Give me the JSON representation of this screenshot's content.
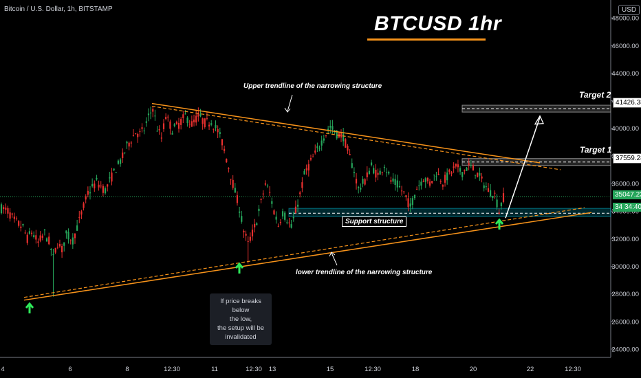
{
  "symbol": "Bitcoin / U.S. Dollar, 1h, BITSTAMP",
  "headline": "BTCUSD 1hr",
  "currency_button": "USD",
  "annotations": {
    "upper": "Upper trendline of the narrowing structure",
    "lower": "lower trendline of the narrowing structure",
    "support": "Support structure",
    "target1": "Target 1",
    "target2": "Target 2",
    "invalidation": [
      "If price breaks below",
      "the low,",
      "the setup will be",
      "invalidated"
    ]
  },
  "price_labels": {
    "current": "35047.23",
    "timer": "34:40",
    "target1": "37559.28",
    "target2": "41426.38",
    "support_partial": "34"
  },
  "colors": {
    "up": "#26a65b",
    "down": "#e8302e",
    "trendline": "#f7931a",
    "support_zone": "#00bcd4",
    "current_price": "#26a65b"
  },
  "chart_data": {
    "type": "candlestick",
    "title": "BTCUSD 1hr",
    "y_ticks": [
      24000,
      26000,
      28000,
      30000,
      32000,
      34000,
      36000,
      38000,
      40000,
      42000,
      44000,
      46000,
      48000
    ],
    "y_tick_labels": [
      "24000.00",
      "26000.00",
      "28000.00",
      "30000.00",
      "32000.00",
      "34000.00",
      "36000.00",
      "38000.00",
      "40000.00",
      "42000.00",
      "44000.00",
      "46000.00",
      "48000.00"
    ],
    "ylim": [
      23400,
      49300
    ],
    "x_ticks": [
      "4",
      "6",
      "8",
      "12:30",
      "11",
      "12:30",
      "13",
      "15",
      "12:30",
      "18",
      "20",
      "22",
      "12:30"
    ],
    "price_path": [
      [
        0,
        34200
      ],
      [
        3,
        34000
      ],
      [
        6,
        33300
      ],
      [
        10,
        32800
      ],
      [
        12,
        32000
      ],
      [
        14,
        32500
      ],
      [
        17,
        31700
      ],
      [
        20,
        32400
      ],
      [
        22,
        31800
      ],
      [
        24,
        30600
      ],
      [
        26,
        31700
      ],
      [
        28,
        31200
      ],
      [
        30,
        32300
      ],
      [
        33,
        31900
      ],
      [
        36,
        33300
      ],
      [
        40,
        35300
      ],
      [
        44,
        36100
      ],
      [
        48,
        35500
      ],
      [
        52,
        36800
      ],
      [
        56,
        37900
      ],
      [
        58,
        38700
      ],
      [
        62,
        39700
      ],
      [
        64,
        39600
      ],
      [
        66,
        39900
      ],
      [
        68,
        40800
      ],
      [
        70,
        41500
      ],
      [
        72,
        40000
      ],
      [
        74,
        39300
      ],
      [
        76,
        40900
      ],
      [
        79,
        39900
      ],
      [
        82,
        40300
      ],
      [
        85,
        40900
      ],
      [
        88,
        40300
      ],
      [
        91,
        40900
      ],
      [
        94,
        40400
      ],
      [
        97,
        40500
      ],
      [
        100,
        39800
      ],
      [
        102,
        39000
      ],
      [
        104,
        37800
      ],
      [
        107,
        36000
      ],
      [
        110,
        34200
      ],
      [
        112,
        32600
      ],
      [
        114,
        31600
      ],
      [
        116,
        32400
      ],
      [
        118,
        33300
      ],
      [
        120,
        34600
      ],
      [
        122,
        36000
      ],
      [
        124,
        35300
      ],
      [
        126,
        34000
      ],
      [
        128,
        33000
      ],
      [
        130,
        33900
      ],
      [
        132,
        33400
      ],
      [
        134,
        32800
      ],
      [
        136,
        34000
      ],
      [
        138,
        35200
      ],
      [
        140,
        36600
      ],
      [
        143,
        37600
      ],
      [
        146,
        38400
      ],
      [
        149,
        39400
      ],
      [
        152,
        40100
      ],
      [
        155,
        39600
      ],
      [
        158,
        39400
      ],
      [
        161,
        37900
      ],
      [
        163,
        36900
      ],
      [
        165,
        35600
      ],
      [
        168,
        36200
      ],
      [
        171,
        37300
      ],
      [
        174,
        36500
      ],
      [
        177,
        37400
      ],
      [
        180,
        36200
      ],
      [
        183,
        35900
      ],
      [
        186,
        35300
      ],
      [
        189,
        34300
      ],
      [
        192,
        35700
      ],
      [
        195,
        36400
      ],
      [
        198,
        36000
      ],
      [
        201,
        36800
      ],
      [
        204,
        36100
      ],
      [
        207,
        36700
      ],
      [
        210,
        37200
      ],
      [
        213,
        36800
      ],
      [
        216,
        37300
      ],
      [
        219,
        36900
      ],
      [
        222,
        36200
      ],
      [
        225,
        35500
      ],
      [
        228,
        35200
      ],
      [
        230,
        34000
      ],
      [
        232,
        35000
      ]
    ],
    "invalidation_low": 27800,
    "upper_trendline": [
      [
        41800,
        38700
      ],
      [
        41600,
        37100
      ]
    ],
    "lower_trendline": [
      [
        27500,
        33700
      ],
      [
        27700,
        34200
      ]
    ],
    "support_zone": [
      33600,
      34200
    ],
    "target_1": 37559.28,
    "target_2": 41426.38,
    "current_price": 35047.23
  }
}
